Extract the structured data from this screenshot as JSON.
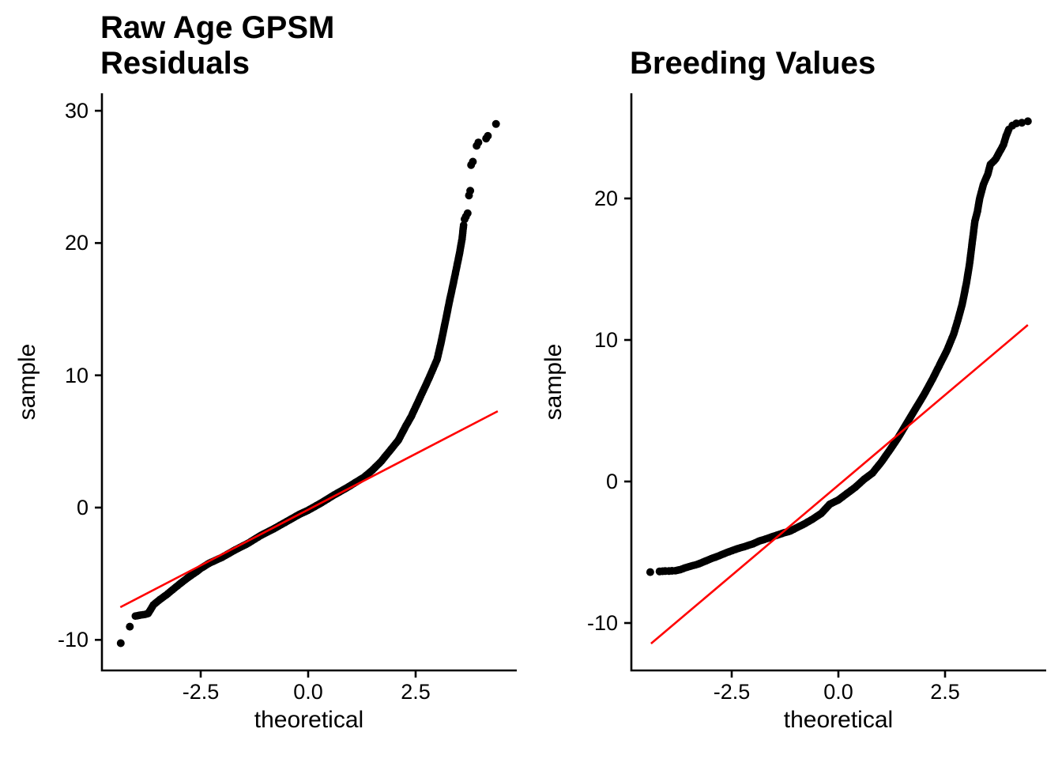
{
  "colors": {
    "background": "#ffffff",
    "points": "#000000",
    "ref_line": "#ff0000",
    "axis": "#000000",
    "text": "#000000"
  },
  "chart_data": [
    {
      "type": "scatter",
      "subtype": "qq-plot",
      "title_lines": [
        "Raw Age GPSM",
        "Residuals"
      ],
      "xlabel": "theoretical",
      "ylabel": "sample",
      "grid": false,
      "legend": false,
      "x_ticks": [
        -2.5,
        0,
        2.5
      ],
      "x_tick_labels": [
        "-2.5",
        "0.0",
        "2.5"
      ],
      "y_ticks": [
        -10,
        0,
        10,
        20,
        30
      ],
      "y_tick_labels": [
        "-10",
        "0",
        "10",
        "20",
        "30"
      ],
      "xlim": [
        -4.798,
        4.853
      ],
      "ylim": [
        -12.31,
        31.32
      ],
      "ref_line": {
        "x1": -4.37,
        "y1": -7.53,
        "x2": 4.41,
        "y2": 7.29
      },
      "curve": [
        [
          -4.02,
          -8.2
        ],
        [
          -3.9,
          -8.12
        ],
        [
          -3.8,
          -8.08
        ],
        [
          -3.72,
          -8.0
        ],
        [
          -3.6,
          -7.35
        ],
        [
          -3.45,
          -6.95
        ],
        [
          -3.3,
          -6.6
        ],
        [
          -3.15,
          -6.2
        ],
        [
          -3.0,
          -5.8
        ],
        [
          -2.8,
          -5.3
        ],
        [
          -2.6,
          -4.85
        ],
        [
          -2.5,
          -4.6
        ],
        [
          -2.3,
          -4.2
        ],
        [
          -2.0,
          -3.75
        ],
        [
          -1.7,
          -3.2
        ],
        [
          -1.4,
          -2.7
        ],
        [
          -1.1,
          -2.1
        ],
        [
          -0.8,
          -1.6
        ],
        [
          -0.5,
          -1.05
        ],
        [
          -0.2,
          -0.5
        ],
        [
          0,
          -0.2
        ],
        [
          0.3,
          0.35
        ],
        [
          0.6,
          0.95
        ],
        [
          0.9,
          1.5
        ],
        [
          1.1,
          1.9
        ],
        [
          1.3,
          2.3
        ],
        [
          1.5,
          2.85
        ],
        [
          1.7,
          3.5
        ],
        [
          1.9,
          4.3
        ],
        [
          2.1,
          5.1
        ],
        [
          2.26,
          6.1
        ],
        [
          2.4,
          6.9
        ],
        [
          2.6,
          8.3
        ],
        [
          2.8,
          9.7
        ],
        [
          3.0,
          11.2
        ],
        [
          3.1,
          12.6
        ],
        [
          3.2,
          14.2
        ],
        [
          3.3,
          15.8
        ],
        [
          3.38,
          17.0
        ],
        [
          3.45,
          18.1
        ],
        [
          3.52,
          19.2
        ],
        [
          3.58,
          20.3
        ],
        [
          3.62,
          21.5
        ]
      ],
      "extra_points": [
        [
          -4.36,
          -10.25
        ],
        [
          -4.15,
          -9.0
        ],
        [
          3.64,
          21.8
        ],
        [
          3.67,
          22.0
        ],
        [
          3.71,
          22.25
        ],
        [
          3.74,
          23.6
        ],
        [
          3.77,
          23.95
        ],
        [
          3.79,
          25.9
        ],
        [
          3.83,
          26.15
        ],
        [
          3.92,
          27.35
        ],
        [
          3.96,
          27.6
        ],
        [
          4.14,
          27.9
        ],
        [
          4.18,
          28.1
        ],
        [
          4.37,
          29.0
        ]
      ]
    },
    {
      "type": "scatter",
      "subtype": "qq-plot",
      "title_lines": [
        "Breeding Values"
      ],
      "xlabel": "theoretical",
      "ylabel": "sample",
      "grid": false,
      "legend": false,
      "x_ticks": [
        -2.5,
        0,
        2.5
      ],
      "x_tick_labels": [
        "-2.5",
        "0.0",
        "2.5"
      ],
      "y_ticks": [
        -10,
        0,
        10,
        20
      ],
      "y_tick_labels": [
        "-10",
        "0",
        "10",
        "20"
      ],
      "xlim": [
        -4.852,
        4.87
      ],
      "ylim": [
        -13.35,
        27.43
      ],
      "ref_line": {
        "x1": -4.39,
        "y1": -11.45,
        "x2": 4.44,
        "y2": 11.06
      },
      "curve": [
        [
          -3.82,
          -6.3
        ],
        [
          -3.7,
          -6.22
        ],
        [
          -3.59,
          -6.1
        ],
        [
          -3.45,
          -5.97
        ],
        [
          -3.3,
          -5.85
        ],
        [
          -3.1,
          -5.6
        ],
        [
          -2.98,
          -5.45
        ],
        [
          -2.8,
          -5.25
        ],
        [
          -2.6,
          -5.0
        ],
        [
          -2.37,
          -4.75
        ],
        [
          -2.2,
          -4.6
        ],
        [
          -2.0,
          -4.4
        ],
        [
          -1.85,
          -4.2
        ],
        [
          -1.74,
          -4.1
        ],
        [
          -1.55,
          -3.9
        ],
        [
          -1.4,
          -3.75
        ],
        [
          -1.25,
          -3.6
        ],
        [
          -1.13,
          -3.5
        ],
        [
          -1.0,
          -3.3
        ],
        [
          -0.8,
          -3.0
        ],
        [
          -0.6,
          -2.65
        ],
        [
          -0.4,
          -2.25
        ],
        [
          -0.2,
          -1.6
        ],
        [
          0,
          -1.3
        ],
        [
          0.2,
          -0.85
        ],
        [
          0.4,
          -0.4
        ],
        [
          0.6,
          0.15
        ],
        [
          0.8,
          0.6
        ],
        [
          1.0,
          1.35
        ],
        [
          1.2,
          2.2
        ],
        [
          1.4,
          3.1
        ],
        [
          1.6,
          4.1
        ],
        [
          1.8,
          5.1
        ],
        [
          2.0,
          6.1
        ],
        [
          2.2,
          7.2
        ],
        [
          2.4,
          8.4
        ],
        [
          2.55,
          9.3
        ],
        [
          2.7,
          10.4
        ],
        [
          2.8,
          11.4
        ],
        [
          2.9,
          12.5
        ],
        [
          3.0,
          14.0
        ],
        [
          3.08,
          15.5
        ],
        [
          3.14,
          17.0
        ],
        [
          3.2,
          18.4
        ],
        [
          3.26,
          19.1
        ],
        [
          3.31,
          20.0
        ],
        [
          3.4,
          21.0
        ],
        [
          3.5,
          21.7
        ],
        [
          3.56,
          22.4
        ],
        [
          3.63,
          22.6
        ],
        [
          3.69,
          22.8
        ],
        [
          3.78,
          23.3
        ],
        [
          3.87,
          23.8
        ],
        [
          3.93,
          24.4
        ],
        [
          4.01,
          25.0
        ]
      ],
      "extra_points": [
        [
          -4.41,
          -6.4
        ],
        [
          -4.19,
          -6.35
        ],
        [
          -4.12,
          -6.34
        ],
        [
          -4.06,
          -6.33
        ],
        [
          -3.97,
          -6.32
        ],
        [
          -3.9,
          -6.31
        ],
        [
          4.08,
          25.15
        ],
        [
          4.17,
          25.3
        ],
        [
          4.3,
          25.35
        ],
        [
          4.44,
          25.45
        ]
      ]
    }
  ]
}
